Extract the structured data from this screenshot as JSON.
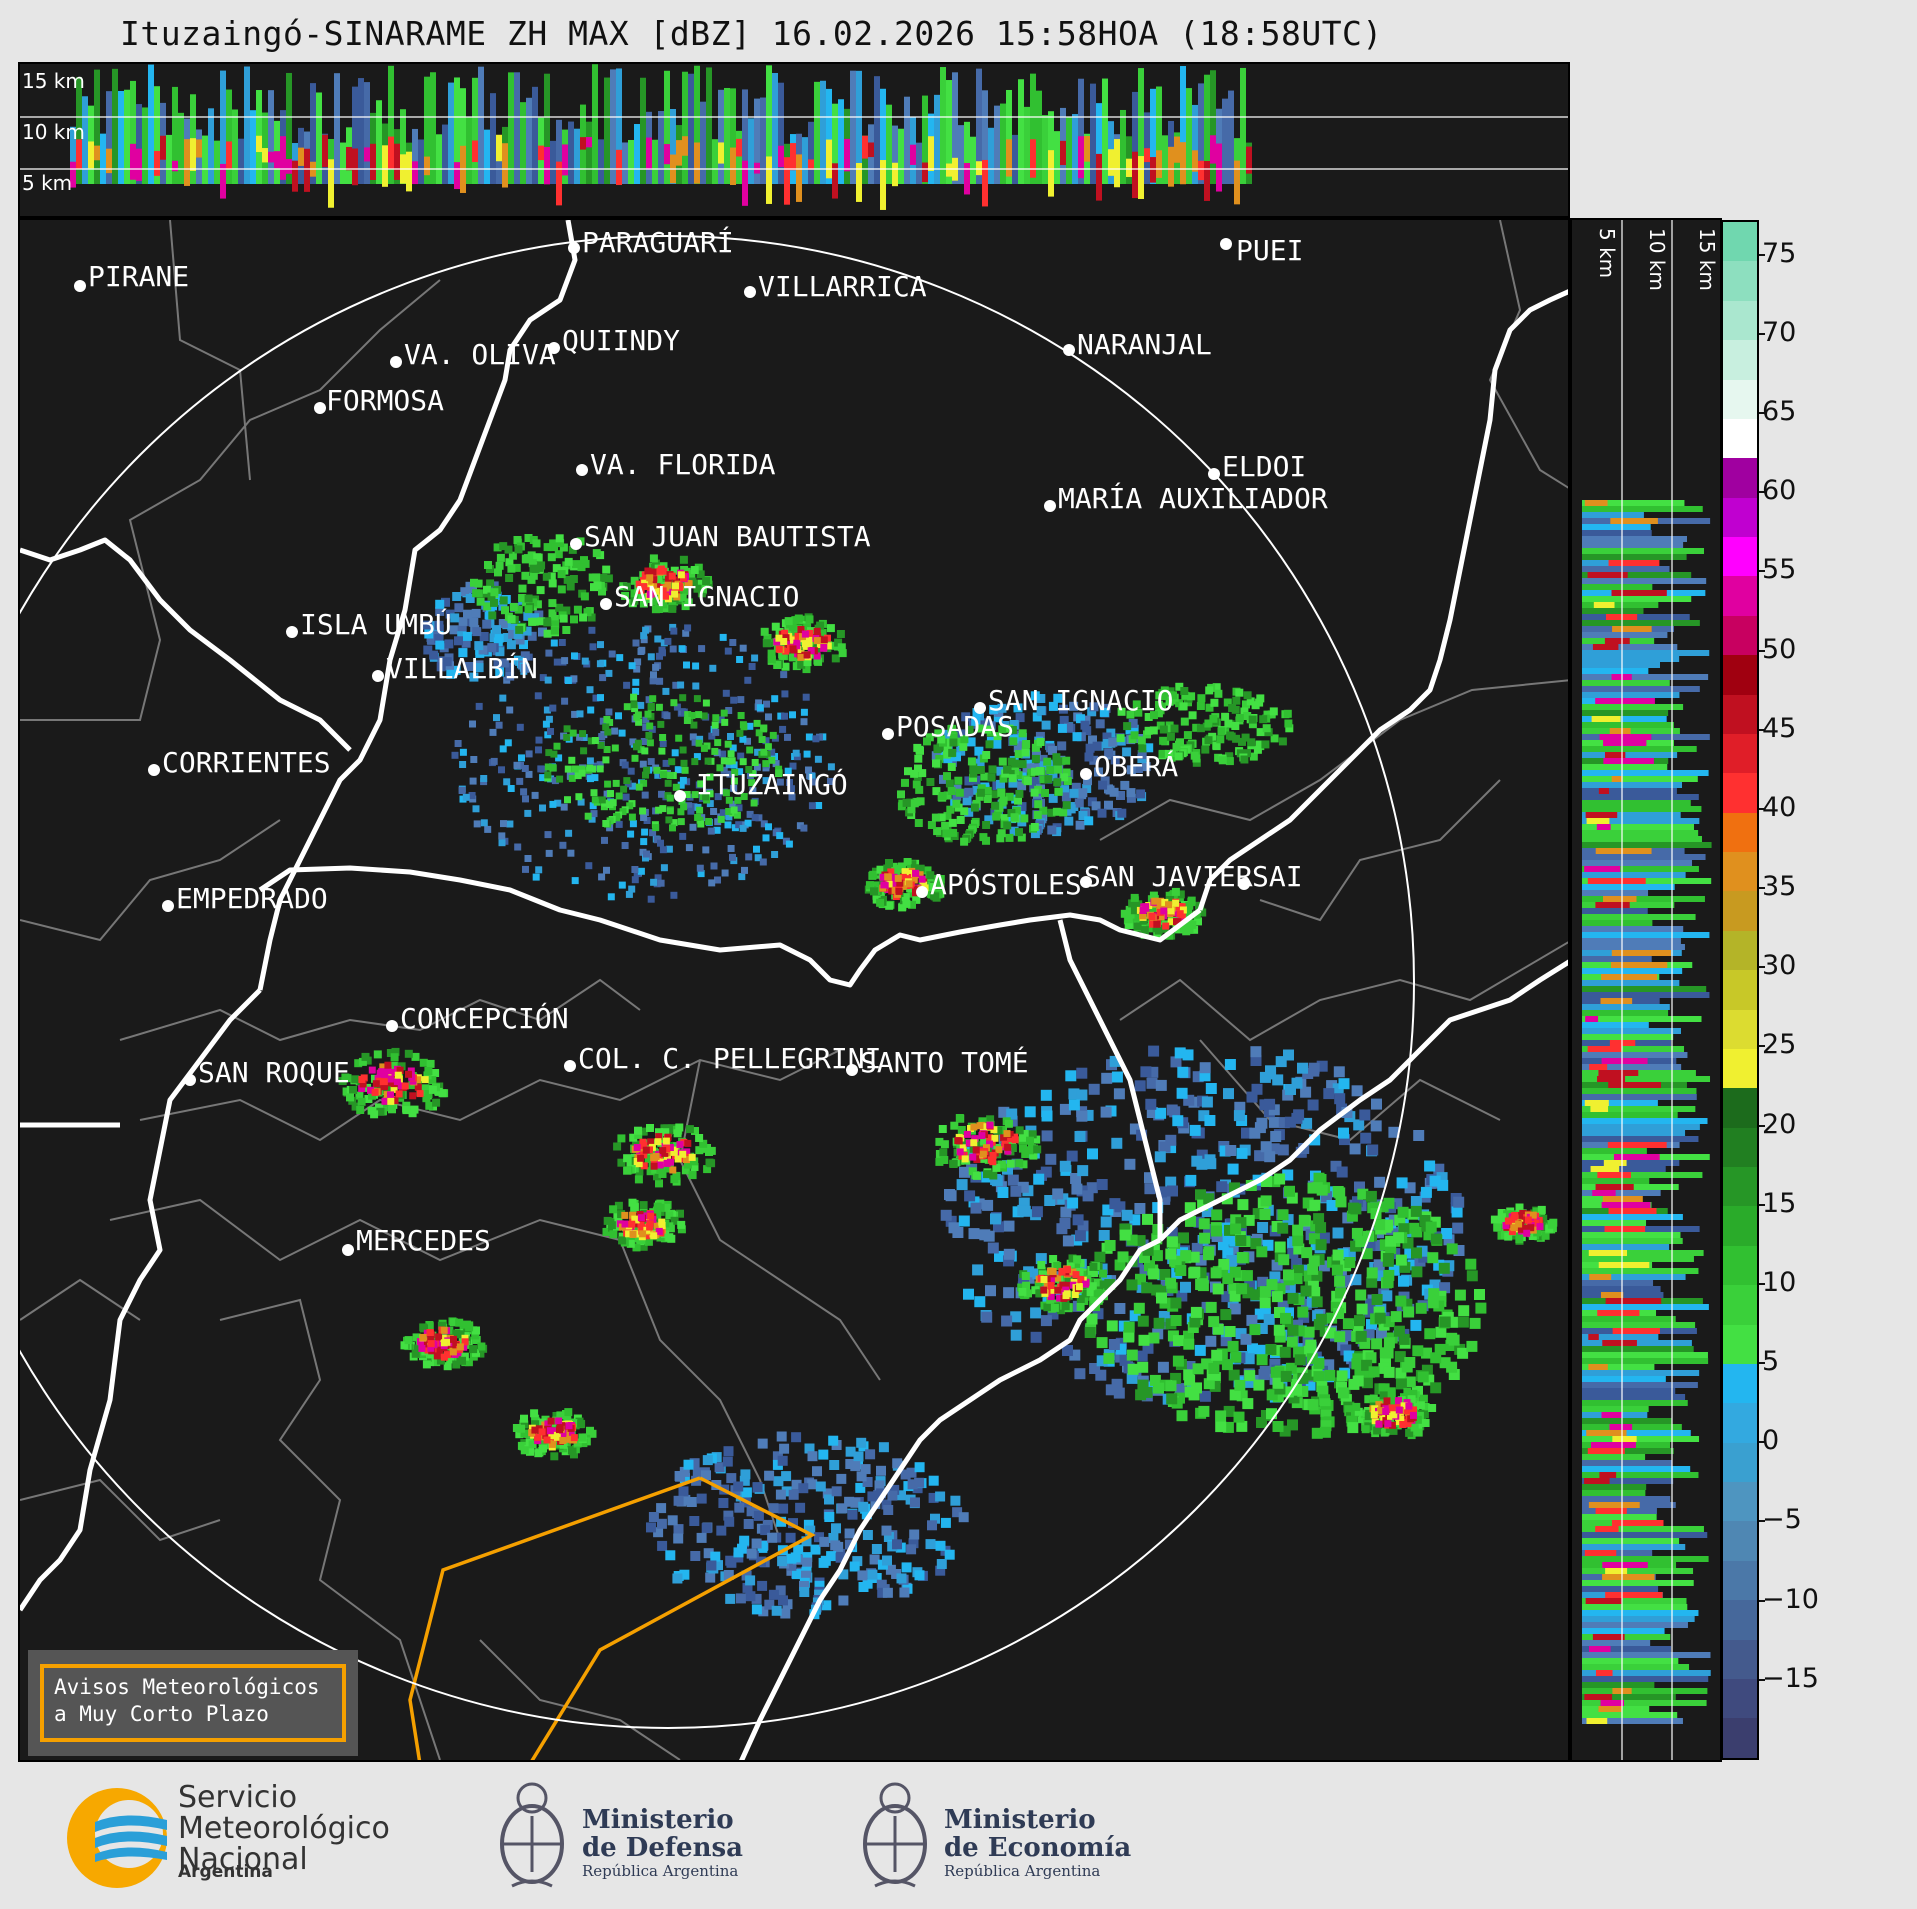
{
  "title": "Ituzaingó-SINARAME ZH MAX [dBZ] 16.02.2026 15:58HOA (18:58UTC)",
  "top_profile_labels": [
    "15 km",
    "10 km",
    "5 km"
  ],
  "side_profile_labels": [
    "5 km",
    "10 km",
    "15 km"
  ],
  "cities": [
    {
      "name": "PIRANE"
    },
    {
      "name": "PARAGUARÍ"
    },
    {
      "name": "VILLARRICA"
    },
    {
      "name": "PUEI"
    },
    {
      "name": "VA. OLIVA"
    },
    {
      "name": "QUIINDY"
    },
    {
      "name": "NARANJAL"
    },
    {
      "name": "FORMOSA"
    },
    {
      "name": "VA. FLORIDA"
    },
    {
      "name": "ELDOI"
    },
    {
      "name": "MARÍA AUXILIADOR"
    },
    {
      "name": "SAN JUAN BAUTISTA"
    },
    {
      "name": "SAN IGNACIO"
    },
    {
      "name": "ISLA UMBÚ"
    },
    {
      "name": "VILLALBÍN"
    },
    {
      "name": "SAN IGNACIO"
    },
    {
      "name": "POSADAS"
    },
    {
      "name": "CORRIENTES"
    },
    {
      "name": "ITUZAINGÓ"
    },
    {
      "name": "OBERÁ"
    },
    {
      "name": "APÓSTOLES"
    },
    {
      "name": "SAN JAVIER"
    },
    {
      "name": "SAI"
    },
    {
      "name": "EMPEDRADO"
    },
    {
      "name": "CONCEPCIÓN"
    },
    {
      "name": "COL. C. PELLEGRINI"
    },
    {
      "name": "SANTO TOMÉ"
    },
    {
      "name": "SAN ROQUE"
    },
    {
      "name": "MERCEDES"
    }
  ],
  "colorbar": {
    "unit": "dBZ",
    "ticks": [
      "75",
      "70",
      "65",
      "60",
      "55",
      "50",
      "45",
      "40",
      "35",
      "30",
      "25",
      "20",
      "15",
      "10",
      "5",
      "0",
      "−5",
      "−10",
      "−15"
    ],
    "range": [
      -20,
      77
    ]
  },
  "aviso": {
    "line1": "Avisos Meteorológicos",
    "line2": "a Muy Corto Plazo"
  },
  "footer": {
    "smn_line1": "Servicio",
    "smn_line2": "Meteorológico",
    "smn_line3": "Nacional",
    "smn_country": "Argentina",
    "defensa_line1": "Ministerio",
    "defensa_line2": "de Defensa",
    "defensa_sub": "República Argentina",
    "economia_line1": "Ministerio",
    "economia_line2": "de Economía",
    "economia_sub": "República Argentina"
  },
  "colors": {
    "background": "#1a1a1a",
    "range_ring": "#ffffff",
    "river": "#ffffff",
    "borders": "#7a7a7a",
    "warning_polygon": "#f5a000"
  }
}
